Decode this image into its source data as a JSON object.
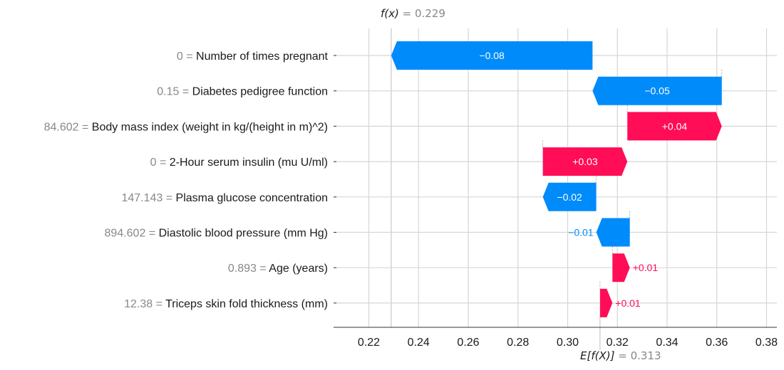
{
  "chart_data": {
    "type": "waterfall",
    "title": "",
    "fx": {
      "label": "f(x)",
      "value": "0.229",
      "number": 0.229
    },
    "efx": {
      "label": "E[f(X)]",
      "value": "0.313",
      "number": 0.313
    },
    "xlim": [
      0.208,
      0.386
    ],
    "xticks": [
      0.22,
      0.24,
      0.26,
      0.28,
      0.3,
      0.32,
      0.34,
      0.36,
      0.38
    ],
    "xtick_labels": [
      "0.22",
      "0.24",
      "0.26",
      "0.28",
      "0.30",
      "0.32",
      "0.34",
      "0.36",
      "0.38"
    ],
    "grid": true,
    "colors": {
      "positive": "#ff0d57",
      "negative": "#008bfb",
      "grid": "#d6d6d6",
      "value_text": "#888888"
    },
    "features": [
      {
        "value": "0",
        "name": "Number of times pregnant",
        "contribution": -0.08,
        "label": "−0.08",
        "start": 0.31,
        "end": 0.229
      },
      {
        "value": "0.15",
        "name": "Diabetes pedigree function",
        "contribution": -0.05,
        "label": "−0.05",
        "start": 0.362,
        "end": 0.31
      },
      {
        "value": "84.602",
        "name": "Body mass index (weight in kg/(height in m)^2)",
        "contribution": 0.04,
        "label": "+0.04",
        "start": 0.324,
        "end": 0.362
      },
      {
        "value": "0",
        "name": "2-Hour serum insulin (mu U/ml)",
        "contribution": 0.03,
        "label": "+0.03",
        "start": 0.29,
        "end": 0.324
      },
      {
        "value": "147.143",
        "name": "Plasma glucose concentration",
        "contribution": -0.02,
        "label": "−0.02",
        "start": 0.3115,
        "end": 0.29
      },
      {
        "value": "894.602",
        "name": "Diastolic blood pressure (mm Hg)",
        "contribution": -0.01,
        "label": "−0.01",
        "start": 0.325,
        "end": 0.3115
      },
      {
        "value": "0.893",
        "name": "Age (years)",
        "contribution": 0.01,
        "label": "+0.01",
        "start": 0.318,
        "end": 0.325
      },
      {
        "value": "12.38",
        "name": "Triceps skin fold thickness (mm)",
        "contribution": 0.01,
        "label": "+0.01",
        "start": 0.313,
        "end": 0.318
      }
    ]
  }
}
